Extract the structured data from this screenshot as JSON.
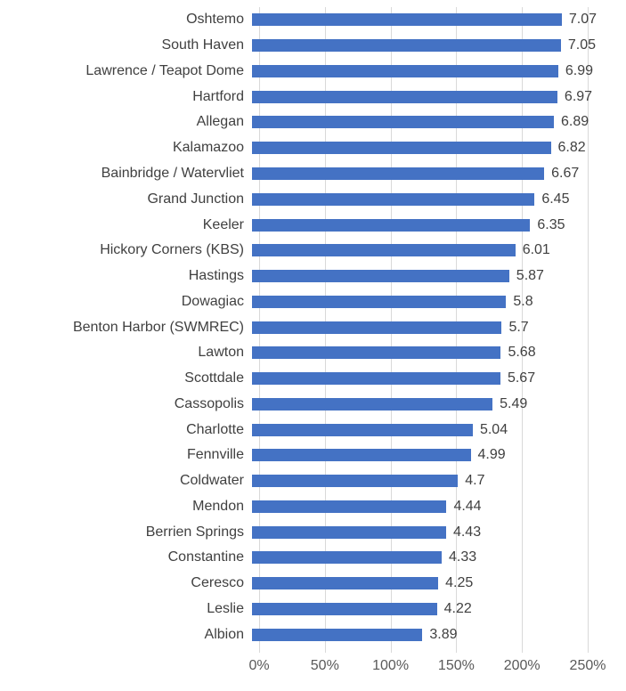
{
  "chart_data": {
    "type": "bar",
    "orientation": "horizontal",
    "title": "",
    "categories": [
      "Oshtemo",
      "South Haven",
      "Lawrence / Teapot Dome",
      "Hartford",
      "Allegan",
      "Kalamazoo",
      "Bainbridge / Watervliet",
      "Grand Junction",
      "Keeler",
      "Hickory Corners (KBS)",
      "Hastings",
      "Dowagiac",
      "Benton Harbor (SWMREC)",
      "Lawton",
      "Scottdale",
      "Cassopolis",
      "Charlotte",
      "Fennville",
      "Coldwater",
      "Mendon",
      "Berrien Springs",
      "Constantine",
      "Ceresco",
      "Leslie",
      "Albion"
    ],
    "values": [
      7.07,
      7.05,
      6.99,
      6.97,
      6.89,
      6.82,
      6.67,
      6.45,
      6.35,
      6.01,
      5.87,
      5.8,
      5.7,
      5.68,
      5.67,
      5.49,
      5.04,
      4.99,
      4.7,
      4.44,
      4.43,
      4.33,
      4.25,
      4.22,
      3.89
    ],
    "value_labels": [
      "7.07",
      "7.05",
      "6.99",
      "6.97",
      "6.89",
      "6.82",
      "6.67",
      "6.45",
      "6.35",
      "6.01",
      "5.87",
      "5.8",
      "5.7",
      "5.68",
      "5.67",
      "5.49",
      "5.04",
      "4.99",
      "4.7",
      "4.44",
      "4.43",
      "4.33",
      "4.25",
      "4.22",
      "3.89"
    ],
    "x_axis": {
      "tick_labels": [
        "0%",
        "50%",
        "100%",
        "150%",
        "200%",
        "250%"
      ],
      "min_percent": 0,
      "max_percent": 250
    },
    "value_to_percent_divisor": 3,
    "grid": true,
    "legend": false,
    "colors": {
      "bar": "#4472C4",
      "gridline": "#D9D9D9",
      "label": "#404040",
      "axis_label": "#595959",
      "background": "#FFFFFF"
    }
  }
}
